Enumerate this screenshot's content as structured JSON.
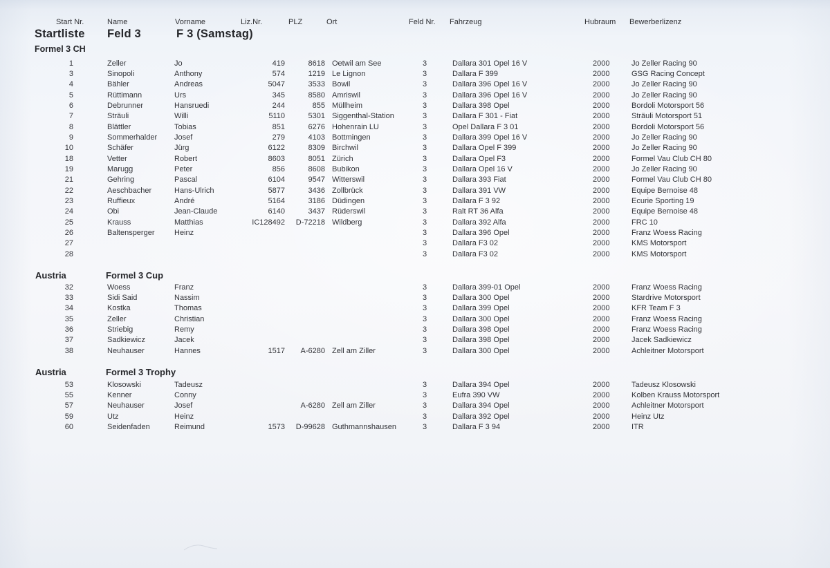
{
  "columns": [
    "Start Nr.",
    "Name",
    "Vorname",
    "Liz.Nr.",
    "PLZ",
    "Ort",
    "Feld Nr.",
    "Fahrzeug",
    "Hubraum",
    "Bewerberlizenz"
  ],
  "title": {
    "list_label": "Startliste",
    "field_label": "Feld 3",
    "class_label": "F 3 (Samstag)"
  },
  "sections": [
    {
      "country": "",
      "name": "Formel 3 CH",
      "rows": [
        {
          "start": "1",
          "name": "Zeller",
          "vorname": "Jo",
          "liz": "419",
          "plz": "8618",
          "ort": "Oetwil am See",
          "feld": "3",
          "fahrzeug": "Dallara 301 Opel 16 V",
          "hubraum": "2000",
          "bewerber": "Jo Zeller Racing 90"
        },
        {
          "start": "3",
          "name": "Sinopoli",
          "vorname": "Anthony",
          "liz": "574",
          "plz": "1219",
          "ort": "Le Lignon",
          "feld": "3",
          "fahrzeug": "Dallara F 399",
          "hubraum": "2000",
          "bewerber": "GSG Racing Concept"
        },
        {
          "start": "4",
          "name": "Bähler",
          "vorname": "Andreas",
          "liz": "5047",
          "plz": "3533",
          "ort": "Bowil",
          "feld": "3",
          "fahrzeug": "Dallara 396 Opel 16 V",
          "hubraum": "2000",
          "bewerber": "Jo Zeller Racing 90"
        },
        {
          "start": "5",
          "name": "Rüttimann",
          "vorname": "Urs",
          "liz": "345",
          "plz": "8580",
          "ort": "Amriswil",
          "feld": "3",
          "fahrzeug": "Dallara 396 Opel 16 V",
          "hubraum": "2000",
          "bewerber": "Jo Zeller Racing 90"
        },
        {
          "start": "6",
          "name": "Debrunner",
          "vorname": "Hansruedi",
          "liz": "244",
          "plz": "855",
          "ort": "Müllheim",
          "feld": "3",
          "fahrzeug": "Dallara 398 Opel",
          "hubraum": "2000",
          "bewerber": "Bordoli Motorsport 56"
        },
        {
          "start": "7",
          "name": "Sträuli",
          "vorname": "Willi",
          "liz": "5110",
          "plz": "5301",
          "ort": "Siggenthal-Station",
          "feld": "3",
          "fahrzeug": "Dallara F 301 - Fiat",
          "hubraum": "2000",
          "bewerber": "Sträuli Motorsport 51"
        },
        {
          "start": "8",
          "name": "Blättler",
          "vorname": "Tobias",
          "liz": "851",
          "plz": "6276",
          "ort": "Hohenrain LU",
          "feld": "3",
          "fahrzeug": "Opel Dallara F 3 01",
          "hubraum": "2000",
          "bewerber": "Bordoli Motorsport 56"
        },
        {
          "start": "9",
          "name": "Sommerhalder",
          "vorname": "Josef",
          "liz": "279",
          "plz": "4103",
          "ort": "Bottmingen",
          "feld": "3",
          "fahrzeug": "Dallara 399 Opel 16 V",
          "hubraum": "2000",
          "bewerber": "Jo Zeller Racing 90"
        },
        {
          "start": "10",
          "name": "Schäfer",
          "vorname": "Jürg",
          "liz": "6122",
          "plz": "8309",
          "ort": "Birchwil",
          "feld": "3",
          "fahrzeug": "Dallara Opel F 399",
          "hubraum": "2000",
          "bewerber": "Jo Zeller Racing 90"
        },
        {
          "start": "18",
          "name": "Vetter",
          "vorname": "Robert",
          "liz": "8603",
          "plz": "8051",
          "ort": "Zürich",
          "feld": "3",
          "fahrzeug": "Dallara Opel F3",
          "hubraum": "2000",
          "bewerber": "Formel Vau Club CH 80"
        },
        {
          "start": "19",
          "name": "Marugg",
          "vorname": "Peter",
          "liz": "856",
          "plz": "8608",
          "ort": "Bubikon",
          "feld": "3",
          "fahrzeug": "Dallara Opel 16 V",
          "hubraum": "2000",
          "bewerber": "Jo Zeller Racing 90"
        },
        {
          "start": "21",
          "name": "Gehring",
          "vorname": "Pascal",
          "liz": "6104",
          "plz": "9547",
          "ort": "Witterswil",
          "feld": "3",
          "fahrzeug": "Dallara 393 Fiat",
          "hubraum": "2000",
          "bewerber": "Formel Vau Club CH 80"
        },
        {
          "start": "22",
          "name": "Aeschbacher",
          "vorname": "Hans-Ulrich",
          "liz": "5877",
          "plz": "3436",
          "ort": "Zollbrück",
          "feld": "3",
          "fahrzeug": "Dallara 391 VW",
          "hubraum": "2000",
          "bewerber": "Equipe Bernoise 48"
        },
        {
          "start": "23",
          "name": "Ruffieux",
          "vorname": "André",
          "liz": "5164",
          "plz": "3186",
          "ort": "Düdingen",
          "feld": "3",
          "fahrzeug": "Dallara F 3 92",
          "hubraum": "2000",
          "bewerber": "Ecurie Sporting 19"
        },
        {
          "start": "24",
          "name": "Obi",
          "vorname": "Jean-Claude",
          "liz": "6140",
          "plz": "3437",
          "ort": "Rüderswil",
          "feld": "3",
          "fahrzeug": "Ralt RT 36 Alfa",
          "hubraum": "2000",
          "bewerber": "Equipe Bernoise 48"
        },
        {
          "start": "25",
          "name": "Krauss",
          "vorname": "Matthias",
          "liz": "IC128492",
          "plz": "D-72218",
          "ort": "Wildberg",
          "feld": "3",
          "fahrzeug": "Dallara 392 Alfa",
          "hubraum": "2000",
          "bewerber": "FRC 10"
        },
        {
          "start": "26",
          "name": "Baltensperger",
          "vorname": "Heinz",
          "liz": "",
          "plz": "",
          "ort": "",
          "feld": "3",
          "fahrzeug": "Dallara 396 Opel",
          "hubraum": "2000",
          "bewerber": "Franz Woess Racing"
        },
        {
          "start": "27",
          "name": "",
          "vorname": "",
          "liz": "",
          "plz": "",
          "ort": "",
          "feld": "3",
          "fahrzeug": "Dallara F3 02",
          "hubraum": "2000",
          "bewerber": "KMS Motorsport"
        },
        {
          "start": "28",
          "name": "",
          "vorname": "",
          "liz": "",
          "plz": "",
          "ort": "",
          "feld": "3",
          "fahrzeug": "Dallara F3 02",
          "hubraum": "2000",
          "bewerber": "KMS Motorsport"
        }
      ]
    },
    {
      "country": "Austria",
      "name": "Formel 3 Cup",
      "rows": [
        {
          "start": "32",
          "name": "Woess",
          "vorname": "Franz",
          "liz": "",
          "plz": "",
          "ort": "",
          "feld": "3",
          "fahrzeug": "Dallara 399-01 Opel",
          "hubraum": "2000",
          "bewerber": "Franz Woess Racing"
        },
        {
          "start": "33",
          "name": "Sidi Said",
          "vorname": "Nassim",
          "liz": "",
          "plz": "",
          "ort": "",
          "feld": "3",
          "fahrzeug": "Dallara 300 Opel",
          "hubraum": "2000",
          "bewerber": "Stardrive Motorsport"
        },
        {
          "start": "34",
          "name": "Kostka",
          "vorname": "Thomas",
          "liz": "",
          "plz": "",
          "ort": "",
          "feld": "3",
          "fahrzeug": "Dallara 399 Opel",
          "hubraum": "2000",
          "bewerber": "KFR Team F 3"
        },
        {
          "start": "35",
          "name": "Zeller",
          "vorname": "Christian",
          "liz": "",
          "plz": "",
          "ort": "",
          "feld": "3",
          "fahrzeug": "Dallara 300 Opel",
          "hubraum": "2000",
          "bewerber": "Franz Woess Racing"
        },
        {
          "start": "36",
          "name": "Striebig",
          "vorname": "Remy",
          "liz": "",
          "plz": "",
          "ort": "",
          "feld": "3",
          "fahrzeug": "Dallara 398 Opel",
          "hubraum": "2000",
          "bewerber": "Franz Woess Racing"
        },
        {
          "start": "37",
          "name": "Sadkiewicz",
          "vorname": "Jacek",
          "liz": "",
          "plz": "",
          "ort": "",
          "feld": "3",
          "fahrzeug": "Dallara 398 Opel",
          "hubraum": "2000",
          "bewerber": "Jacek Sadkiewicz"
        },
        {
          "start": "38",
          "name": "Neuhauser",
          "vorname": "Hannes",
          "liz": "1517",
          "plz": "A-6280",
          "ort": "Zell am Ziller",
          "feld": "3",
          "fahrzeug": "Dallara 300 Opel",
          "hubraum": "2000",
          "bewerber": "Achleitner Motorsport"
        }
      ]
    },
    {
      "country": "Austria",
      "name": "Formel 3 Trophy",
      "rows": [
        {
          "start": "53",
          "name": "Klosowski",
          "vorname": "Tadeusz",
          "liz": "",
          "plz": "",
          "ort": "",
          "feld": "3",
          "fahrzeug": "Dallara 394 Opel",
          "hubraum": "2000",
          "bewerber": "Tadeusz Klosowski"
        },
        {
          "start": "55",
          "name": "Kenner",
          "vorname": "Conny",
          "liz": "",
          "plz": "",
          "ort": "",
          "feld": "3",
          "fahrzeug": "Eufra 390 VW",
          "hubraum": "2000",
          "bewerber": "Kolben Krauss Motorsport"
        },
        {
          "start": "57",
          "name": "Neuhauser",
          "vorname": "Josef",
          "liz": "",
          "plz": "A-6280",
          "ort": "Zell am Ziller",
          "feld": "3",
          "fahrzeug": "Dallara 394 Opel",
          "hubraum": "2000",
          "bewerber": "Achleitner Motorsport"
        },
        {
          "start": "59",
          "name": "Utz",
          "vorname": "Heinz",
          "liz": "",
          "plz": "",
          "ort": "",
          "feld": "3",
          "fahrzeug": "Dallara 392 Opel",
          "hubraum": "2000",
          "bewerber": "Heinz Utz"
        },
        {
          "start": "60",
          "name": "Seidenfaden",
          "vorname": "Reimund",
          "liz": "1573",
          "plz": "D-99628",
          "ort": "Guthmannshausen",
          "feld": "3",
          "fahrzeug": "Dallara F 3 94",
          "hubraum": "2000",
          "bewerber": "ITR"
        }
      ]
    }
  ]
}
